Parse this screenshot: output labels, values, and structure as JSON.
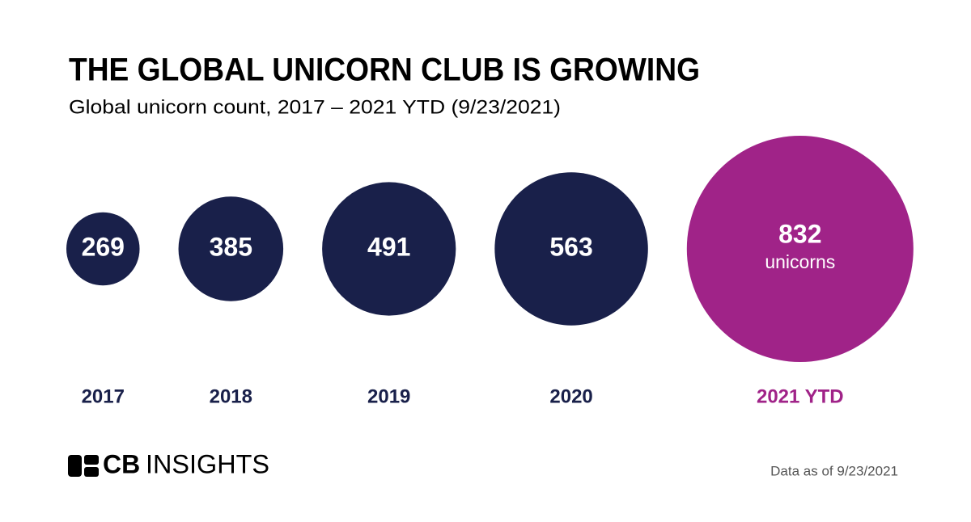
{
  "chart_data": {
    "type": "bubble",
    "title": "THE GLOBAL UNICORN CLUB IS GROWING",
    "subtitle": "Global unicorn count, 2017 – 2021 YTD (9/23/2021)",
    "categories": [
      "2017",
      "2018",
      "2019",
      "2020",
      "2021 YTD"
    ],
    "values": [
      269,
      385,
      491,
      563,
      832
    ],
    "colors": [
      "#19204a",
      "#19204a",
      "#19204a",
      "#19204a",
      "#a02388"
    ],
    "annotation": "unicorns",
    "source": "Data as of 9/23/2021"
  },
  "logo": {
    "bold": "CB",
    "light": "INSIGHTS"
  }
}
